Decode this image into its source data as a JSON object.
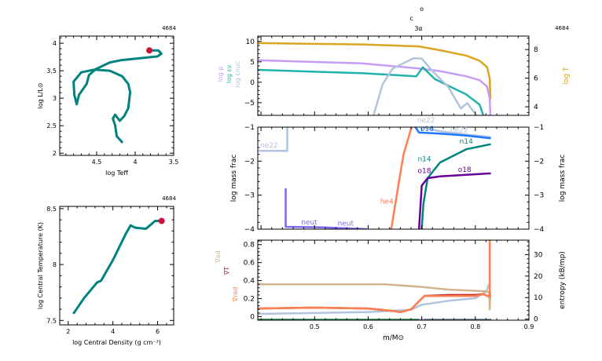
{
  "chart_data": [
    {
      "id": "hr",
      "type": "line",
      "model_number": "4684",
      "xlabel": "log Teff",
      "ylabel": "log L/L⊙",
      "xlim": [
        4.98,
        3.5
      ],
      "ylim": [
        1.96,
        4.13
      ],
      "xticks": [
        4.5,
        4,
        3.5
      ],
      "xtick_labels": [
        "4.5",
        "4",
        "3.5"
      ],
      "yticks": [
        2,
        2.5,
        3,
        3.5,
        4
      ],
      "ytick_labels": [
        "2",
        "2.5",
        "3",
        "3.5",
        "4"
      ],
      "series": [
        {
          "color": "#00837e",
          "x": [
            4.163,
            4.24,
            4.26,
            4.29,
            4.26,
            4.2,
            4.14,
            4.09,
            4.065,
            4.09,
            4.17,
            4.33,
            4.53,
            4.7,
            4.8,
            4.79,
            4.76,
            4.73,
            4.63,
            4.6,
            4.51,
            4.33,
            4.19,
            3.92,
            3.71,
            3.66,
            3.7,
            3.816
          ],
          "y": [
            2.19,
            2.31,
            2.51,
            2.63,
            2.7,
            2.59,
            2.68,
            2.82,
            3.11,
            3.26,
            3.4,
            3.5,
            3.52,
            3.47,
            3.3,
            3.06,
            2.89,
            3.06,
            3.26,
            3.42,
            3.53,
            3.65,
            3.69,
            3.73,
            3.76,
            3.81,
            3.87,
            3.87
          ]
        }
      ],
      "current_point": {
        "x": 3.816,
        "y": 3.87,
        "color": "#d0103a"
      }
    },
    {
      "id": "rho-t",
      "type": "line",
      "model_number": "4684",
      "xlabel": "log Central Density (g cm⁻³)",
      "ylabel": "log Central Temperature (K)",
      "xlim": [
        1.62,
        6.72
      ],
      "ylim": [
        7.46,
        8.52
      ],
      "xticks": [
        2,
        4,
        6
      ],
      "xtick_labels": [
        "2",
        "4",
        "6"
      ],
      "yticks": [
        7.5,
        8,
        8.5
      ],
      "ytick_labels": [
        "7.5",
        "8",
        "8.5"
      ],
      "series": [
        {
          "color": "#00837e",
          "x": [
            2.23,
            2.71,
            3.29,
            3.47,
            4.0,
            4.59,
            4.79,
            5.0,
            5.48,
            5.89,
            6.18
          ],
          "y": [
            7.56,
            7.7,
            7.84,
            7.855,
            8.04,
            8.28,
            8.35,
            8.33,
            8.32,
            8.39,
            8.39
          ]
        }
      ],
      "current_point": {
        "x": 6.18,
        "y": 8.39,
        "color": "#d0103a"
      }
    },
    {
      "id": "profile-top",
      "type": "line",
      "model_number": "4684",
      "xlim": [
        0.394,
        0.9
      ],
      "ylim": [
        -8.1,
        11.3
      ],
      "ylim_right": [
        3.4,
        8.94
      ],
      "yticks": [
        -5,
        0,
        5,
        10
      ],
      "ytick_labels": [
        "−5",
        "0",
        "5",
        "10"
      ],
      "yticks_right": [
        4,
        6,
        8
      ],
      "ytick_labels_right": [
        "4",
        "6",
        "8"
      ],
      "left_labels": [
        {
          "text": "log ρ",
          "color": "#c59cf6"
        },
        {
          "text": "log εν",
          "color": "#20b2aa"
        },
        {
          "text": "log εnuc",
          "color": "#b0c4de"
        }
      ],
      "right_label": {
        "text": "log T",
        "color": "#daa520"
      },
      "top_markers": [
        {
          "text": "o",
          "x": 0.7
        },
        {
          "text": "c",
          "x": 0.681
        },
        {
          "text": "3α",
          "x": 0.694
        }
      ],
      "series": [
        {
          "key": "logT",
          "axis": "right",
          "color": "#daa520",
          "x": [
            0.394,
            0.588,
            0.695,
            0.734,
            0.783,
            0.808,
            0.822,
            0.827,
            0.828
          ],
          "y": [
            8.45,
            8.36,
            8.22,
            7.95,
            7.58,
            7.22,
            6.77,
            5.95,
            4.5
          ]
        },
        {
          "key": "logRho",
          "axis": "left",
          "color": "#c59cf6",
          "x": [
            0.394,
            0.588,
            0.695,
            0.734,
            0.783,
            0.808,
            0.822,
            0.827,
            0.828
          ],
          "y": [
            5.39,
            4.63,
            3.36,
            2.73,
            1.46,
            0.51,
            -1.06,
            -4,
            -8.1
          ]
        },
        {
          "key": "logEpsNu",
          "axis": "left",
          "color": "#20b2aa",
          "x": [
            0.394,
            0.588,
            0.69,
            0.702,
            0.724,
            0.748,
            0.783,
            0.808,
            0.815
          ],
          "y": [
            3.05,
            2.22,
            1.46,
            3.68,
            0.83,
            -0.74,
            -2.96,
            -5.49,
            -8.1
          ]
        },
        {
          "key": "logEpsNuc",
          "axis": "left",
          "color": "#b0c4de",
          "x": [
            0.61,
            0.627,
            0.646,
            0.685,
            0.7,
            0.72,
            0.749,
            0.773,
            0.785,
            0.802
          ],
          "y": [
            -8.1,
            -0.44,
            3.36,
            5.9,
            5.8,
            2.73,
            -1.06,
            -6.4,
            -5.1,
            -8.1
          ]
        }
      ]
    },
    {
      "id": "mass-frac",
      "type": "line",
      "xlim": [
        0.394,
        0.9
      ],
      "ylim": [
        -4,
        -1
      ],
      "ylabel": "log mass frac",
      "ylabel_right": "log mass frac",
      "yticks": [
        -4,
        -3,
        -2,
        -1
      ],
      "ytick_labels": [
        "−4",
        "−3",
        "−2",
        "−1"
      ],
      "series": [
        {
          "name": "ne22",
          "color": "#b0c4de",
          "x": [
            0.394,
            0.449,
            0.449
          ],
          "y": [
            -1.7,
            -1.7,
            -1.0
          ],
          "label_at": [
            0.415,
            -1.6
          ]
        },
        {
          "name": "ne22",
          "color": "#b0c4de",
          "x": [
            0.703,
            0.734,
            0.783,
            0.829
          ],
          "y": [
            -1.02,
            -1.12,
            -1.22,
            -1.29
          ],
          "label_at": [
            0.708,
            -0.98
          ],
          "label2_at": [
            0.77,
            -1.15
          ]
        },
        {
          "name": "o16",
          "color": "#1e78ff",
          "x": [
            0.688,
            0.695,
            0.734,
            0.783,
            0.829
          ],
          "y": [
            -1.0,
            -1.16,
            -1.19,
            -1.25,
            -1.33
          ],
          "label_at": [
            0.71,
            -1.12
          ]
        },
        {
          "name": "n14",
          "color": "#00837e",
          "x": [
            0.7,
            0.703,
            0.711,
            0.734,
            0.783,
            0.829
          ],
          "y": [
            -4,
            -3.27,
            -2.5,
            -2.04,
            -1.65,
            -1.5
          ],
          "label_at": [
            0.705,
            -2.0
          ],
          "label2_at": [
            0.783,
            -1.48
          ]
        },
        {
          "name": "o18",
          "color": "#660099",
          "x": [
            0.695,
            0.7,
            0.711,
            0.734,
            0.783,
            0.829
          ],
          "y": [
            -4,
            -2.72,
            -2.5,
            -2.45,
            -2.4,
            -2.36
          ],
          "label_at": [
            0.705,
            -2.35
          ],
          "label2_at": [
            0.78,
            -2.32
          ]
        },
        {
          "name": "he4",
          "color": "#ff7f50",
          "x": [
            0.643,
            0.657,
            0.666,
            0.681
          ],
          "y": [
            -4,
            -2.65,
            -1.8,
            -1.0
          ],
          "label_at": [
            0.635,
            -3.25
          ]
        },
        {
          "name": "neut",
          "color": "#7b68ee",
          "x": [
            0.446,
            0.446,
            0.517,
            0.598
          ],
          "y": [
            -2.8,
            -3.93,
            -3.95,
            -4.0
          ],
          "label_at": [
            0.49,
            -3.86
          ],
          "label2_at": [
            0.558,
            -3.9
          ]
        }
      ]
    },
    {
      "id": "gradients",
      "type": "line",
      "xlim": [
        0.394,
        0.9
      ],
      "ylim": [
        -0.04,
        0.85
      ],
      "ylim_right": [
        -0.5,
        36.7
      ],
      "xlabel": "m/M⊙",
      "xticks": [
        0.5,
        0.6,
        0.7,
        0.8,
        0.9
      ],
      "xtick_labels": [
        "0.5",
        "0.6",
        "0.7",
        "0.8",
        "0.9"
      ],
      "yticks": [
        0,
        0.2,
        0.4,
        0.6,
        0.8
      ],
      "ytick_labels": [
        "0",
        "0.2",
        "0.4",
        "0.6",
        "0.8"
      ],
      "yticks_right": [
        0,
        10,
        20,
        30
      ],
      "ytick_labels_right": [
        "0",
        "10",
        "20",
        "30"
      ],
      "left_labels": [
        {
          "text": "∇ad",
          "color": "#d2b48c"
        },
        {
          "text": "∇T",
          "color": "#b22222"
        },
        {
          "text": "∇rad",
          "color": "#ff7f50"
        }
      ],
      "right_label": {
        "text": "entropy (kB/mp)",
        "color": "#000000"
      },
      "series": [
        {
          "key": "entropy",
          "axis": "right",
          "color": "#b0c4de",
          "x": [
            0.394,
            0.6,
            0.68,
            0.7,
            0.75,
            0.8,
            0.82,
            0.826
          ],
          "y": [
            2.4,
            3.3,
            4.3,
            6.7,
            8.5,
            9.7,
            12.7,
            16.4
          ]
        },
        {
          "key": "grad_ad",
          "axis": "left",
          "color": "#d2b48c",
          "x": [
            0.394,
            0.63,
            0.7,
            0.75,
            0.79,
            0.82,
            0.826,
            0.827,
            0.828
          ],
          "y": [
            0.36,
            0.36,
            0.33,
            0.3,
            0.29,
            0.28,
            0.27,
            0.08,
            0.27
          ]
        },
        {
          "key": "grad_T",
          "axis": "left",
          "color": "#b22222",
          "x": [
            0.394,
            0.5,
            0.6,
            0.65,
            0.66,
            0.68,
            0.695,
            0.705,
            0.75,
            0.8,
            0.815,
            0.826
          ],
          "y": [
            0.09,
            0.1,
            0.09,
            0.06,
            0.05,
            0.08,
            0.17,
            0.23,
            0.24,
            0.24,
            0.25,
            0.22
          ]
        },
        {
          "key": "grad_rad",
          "axis": "left",
          "color": "#ff7f50",
          "x": [
            0.394,
            0.5,
            0.6,
            0.65,
            0.66,
            0.68,
            0.695,
            0.705,
            0.75,
            0.8,
            0.815,
            0.826,
            0.827,
            0.827
          ],
          "y": [
            0.09,
            0.1,
            0.09,
            0.06,
            0.05,
            0.08,
            0.17,
            0.23,
            0.23,
            0.23,
            0.25,
            0.22,
            0.22,
            0.85
          ]
        },
        {
          "key": "mix-convective",
          "axis": "left",
          "color": "#2e8b57",
          "x": [
            0.394,
            0.695
          ],
          "y": [
            -0.035,
            -0.035
          ]
        },
        {
          "key": "mix-other",
          "axis": "left",
          "color": "#c59cf6",
          "x": [
            0.695,
            0.705
          ],
          "y": [
            -0.035,
            -0.035
          ]
        },
        {
          "key": "mix-overshoot",
          "axis": "left",
          "color": "#708090",
          "x": [
            0.705,
            0.83
          ],
          "y": [
            -0.035,
            -0.035
          ]
        }
      ]
    }
  ]
}
